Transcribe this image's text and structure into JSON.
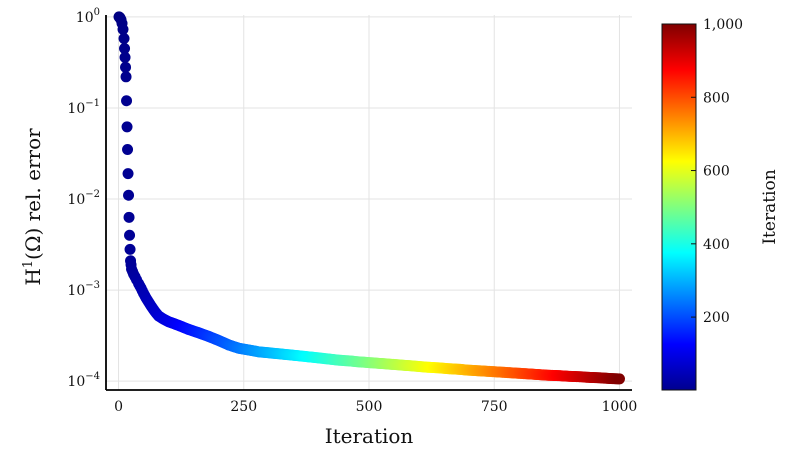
{
  "chart_data": {
    "type": "scatter",
    "xlabel": "Iteration",
    "ylabel": "H",
    "ylabel_sup": "1",
    "ylabel_rest": "(Ω) rel. error",
    "yscale": "log",
    "xlim": [
      -25,
      1025
    ],
    "ylim": [
      8e-05,
      1.05
    ],
    "xticks": [
      0,
      250,
      500,
      750,
      1000
    ],
    "xtick_labels": [
      "0",
      "250",
      "500",
      "750",
      "1000"
    ],
    "yticks": [
      0.0001,
      0.001,
      0.01,
      0.1,
      1
    ],
    "ytick_base": "10",
    "ytick_exps": [
      "−4",
      "−3",
      "−2",
      "−1",
      "0"
    ],
    "grid": true,
    "colormap": "jet",
    "colorbar": {
      "label": "Iteration",
      "range": [
        1,
        1000
      ],
      "ticks": [
        200,
        400,
        600,
        800,
        1000
      ],
      "tick_labels": [
        "200",
        "400",
        "600",
        "800",
        "1,000"
      ]
    },
    "points": [
      {
        "x": 1,
        "y": 1.0
      },
      {
        "x": 3,
        "y": 0.98
      },
      {
        "x": 5,
        "y": 0.93
      },
      {
        "x": 7,
        "y": 0.85
      },
      {
        "x": 9,
        "y": 0.73
      },
      {
        "x": 11,
        "y": 0.58
      },
      {
        "x": 12,
        "y": 0.45
      },
      {
        "x": 13,
        "y": 0.36
      },
      {
        "x": 14,
        "y": 0.28
      },
      {
        "x": 15,
        "y": 0.22
      },
      {
        "x": 16,
        "y": 0.12
      },
      {
        "x": 17,
        "y": 0.062
      },
      {
        "x": 18,
        "y": 0.035
      },
      {
        "x": 19,
        "y": 0.019
      },
      {
        "x": 20,
        "y": 0.011
      },
      {
        "x": 21,
        "y": 0.0063
      },
      {
        "x": 22,
        "y": 0.004
      },
      {
        "x": 23,
        "y": 0.0028
      },
      {
        "x": 24,
        "y": 0.0021
      },
      {
        "x": 25,
        "y": 0.0019
      },
      {
        "x": 26,
        "y": 0.0017
      },
      {
        "x": 28,
        "y": 0.0016
      },
      {
        "x": 30,
        "y": 0.0015
      },
      {
        "x": 33,
        "y": 0.0014
      },
      {
        "x": 36,
        "y": 0.0013
      },
      {
        "x": 40,
        "y": 0.00118
      },
      {
        "x": 45,
        "y": 0.00105
      },
      {
        "x": 50,
        "y": 0.00092
      },
      {
        "x": 55,
        "y": 0.00082
      },
      {
        "x": 60,
        "y": 0.00074
      },
      {
        "x": 65,
        "y": 0.00067
      },
      {
        "x": 70,
        "y": 0.00061
      },
      {
        "x": 75,
        "y": 0.00056
      },
      {
        "x": 80,
        "y": 0.00052
      },
      {
        "x": 90,
        "y": 0.00048
      },
      {
        "x": 100,
        "y": 0.00045
      },
      {
        "x": 120,
        "y": 0.00041
      },
      {
        "x": 140,
        "y": 0.00037
      },
      {
        "x": 160,
        "y": 0.00034
      },
      {
        "x": 180,
        "y": 0.00031
      },
      {
        "x": 200,
        "y": 0.00028
      },
      {
        "x": 220,
        "y": 0.00025
      },
      {
        "x": 240,
        "y": 0.00023
      },
      {
        "x": 260,
        "y": 0.00022
      },
      {
        "x": 280,
        "y": 0.00021
      },
      {
        "x": 300,
        "y": 0.000205
      },
      {
        "x": 320,
        "y": 0.0002
      },
      {
        "x": 340,
        "y": 0.000195
      },
      {
        "x": 360,
        "y": 0.00019
      },
      {
        "x": 380,
        "y": 0.000185
      },
      {
        "x": 400,
        "y": 0.00018
      },
      {
        "x": 420,
        "y": 0.000175
      },
      {
        "x": 440,
        "y": 0.00017
      },
      {
        "x": 460,
        "y": 0.000167
      },
      {
        "x": 480,
        "y": 0.000163
      },
      {
        "x": 500,
        "y": 0.00016
      },
      {
        "x": 520,
        "y": 0.000157
      },
      {
        "x": 540,
        "y": 0.000154
      },
      {
        "x": 560,
        "y": 0.000151
      },
      {
        "x": 580,
        "y": 0.000148
      },
      {
        "x": 600,
        "y": 0.000145
      },
      {
        "x": 620,
        "y": 0.000142
      },
      {
        "x": 640,
        "y": 0.00014
      },
      {
        "x": 660,
        "y": 0.000137
      },
      {
        "x": 680,
        "y": 0.000135
      },
      {
        "x": 700,
        "y": 0.000132
      },
      {
        "x": 720,
        "y": 0.00013
      },
      {
        "x": 740,
        "y": 0.000128
      },
      {
        "x": 760,
        "y": 0.000126
      },
      {
        "x": 780,
        "y": 0.000124
      },
      {
        "x": 800,
        "y": 0.000122
      },
      {
        "x": 820,
        "y": 0.00012
      },
      {
        "x": 840,
        "y": 0.000118
      },
      {
        "x": 860,
        "y": 0.000116
      },
      {
        "x": 880,
        "y": 0.000115
      },
      {
        "x": 900,
        "y": 0.000113
      },
      {
        "x": 920,
        "y": 0.000112
      },
      {
        "x": 940,
        "y": 0.00011
      },
      {
        "x": 960,
        "y": 0.000109
      },
      {
        "x": 980,
        "y": 0.000107
      },
      {
        "x": 1000,
        "y": 0.000106
      }
    ]
  }
}
